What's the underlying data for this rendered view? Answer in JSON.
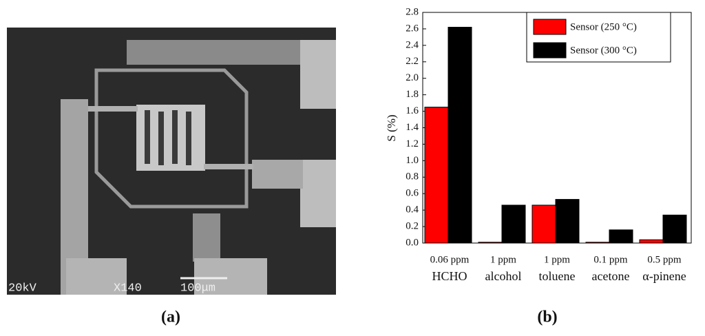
{
  "panels": {
    "a": {
      "caption": "(a)",
      "sem_labels": [
        "20kV",
        "X140",
        "100μm"
      ]
    },
    "b": {
      "caption": "(b)"
    }
  },
  "chart_data": {
    "type": "bar",
    "ylabel": "S (%)",
    "categories": [
      [
        "0.06 ppm",
        "HCHO"
      ],
      [
        "1 ppm",
        "alcohol"
      ],
      [
        "1 ppm",
        "toluene"
      ],
      [
        "0.1 ppm",
        "acetone"
      ],
      [
        "0.5 ppm",
        "α-pinene"
      ]
    ],
    "series": [
      {
        "name": "Sensor (250 °C)",
        "color": "#ff0000",
        "values": [
          1.65,
          0.01,
          0.46,
          0.01,
          0.04
        ]
      },
      {
        "name": "Sensor (300 °C)",
        "color": "#000000",
        "values": [
          2.62,
          0.46,
          0.53,
          0.16,
          0.34
        ]
      }
    ],
    "ylim": [
      0,
      2.8
    ],
    "yticks": [
      {
        "value": 0,
        "label": "0.0"
      },
      {
        "value": 0.2,
        "label": "0.2"
      },
      {
        "value": 0.4,
        "label": "0.4"
      },
      {
        "value": 0.6,
        "label": "0.6"
      },
      {
        "value": 0.8,
        "label": "0.8"
      },
      {
        "value": 1,
        "label": "1.0"
      },
      {
        "value": 1.2,
        "label": "1.2"
      },
      {
        "value": 1.4,
        "label": "1.4"
      },
      {
        "value": 1.6,
        "label": "1.6"
      },
      {
        "value": 1.8,
        "label": "1.8"
      },
      {
        "value": 2,
        "label": "2.0"
      },
      {
        "value": 2.2,
        "label": "2.2"
      },
      {
        "value": 2.4,
        "label": "2.4"
      },
      {
        "value": 2.6,
        "label": "2.6"
      },
      {
        "value": 2.8,
        "label": "2.8"
      }
    ],
    "legend": "upper right",
    "grid": false
  }
}
